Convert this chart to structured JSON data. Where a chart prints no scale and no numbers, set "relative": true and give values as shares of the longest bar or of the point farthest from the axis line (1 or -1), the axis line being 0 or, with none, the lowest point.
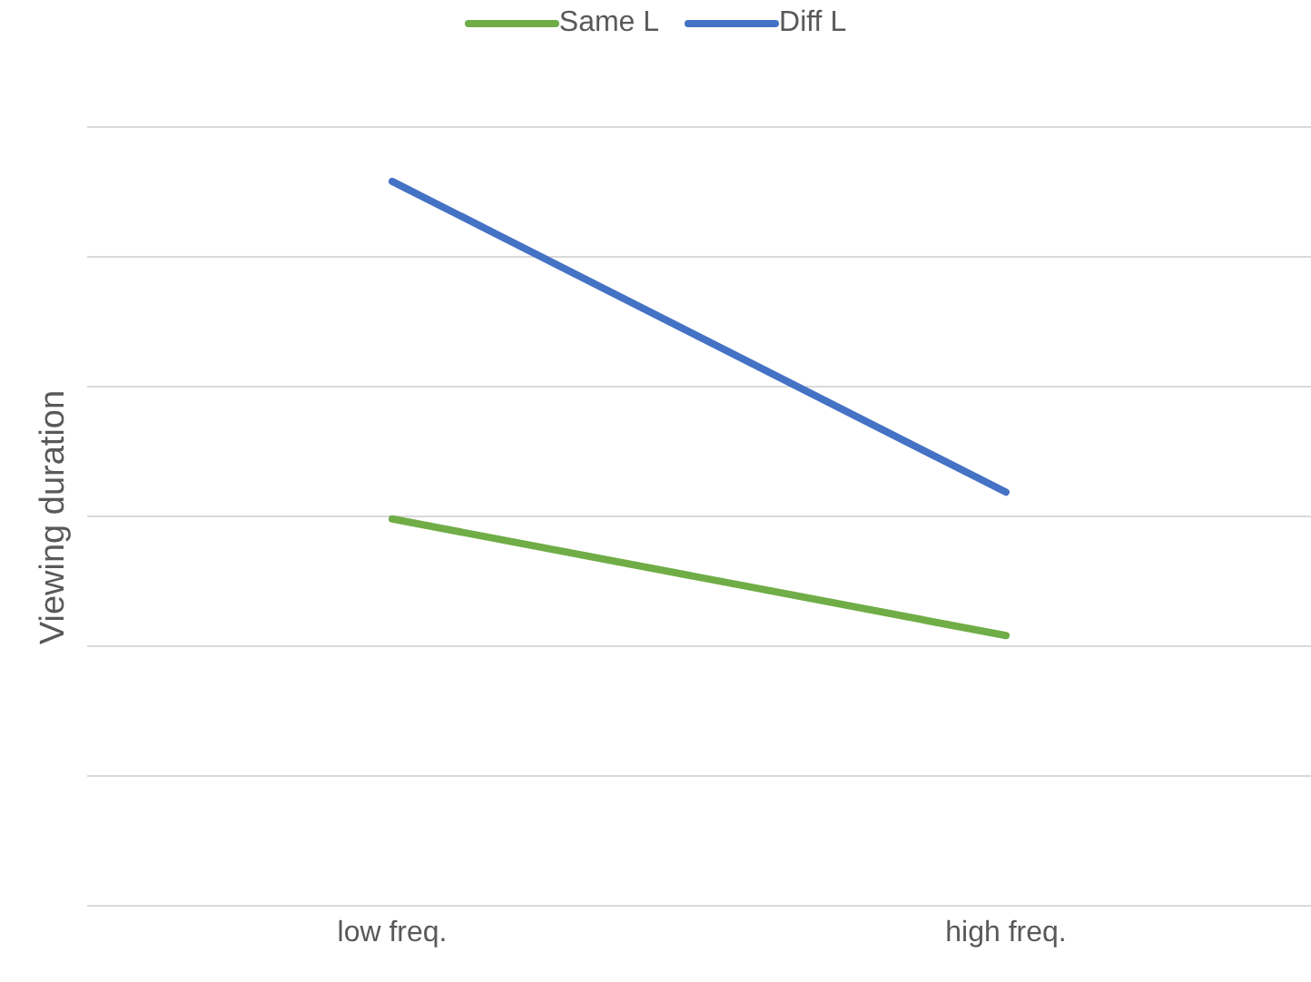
{
  "chart_data": {
    "type": "line",
    "ylabel": "Viewing duration",
    "categories": [
      "low freq.",
      "high freq."
    ],
    "relative": true,
    "grid": "y",
    "legend": "top",
    "marker": "none",
    "series": [
      {
        "name": "Same L",
        "color": "#70ad47",
        "values": [
          0.534,
          0.373
        ]
      },
      {
        "name": "Diff L",
        "color": "#4472c4",
        "values": [
          1,
          0.571
        ]
      }
    ]
  }
}
